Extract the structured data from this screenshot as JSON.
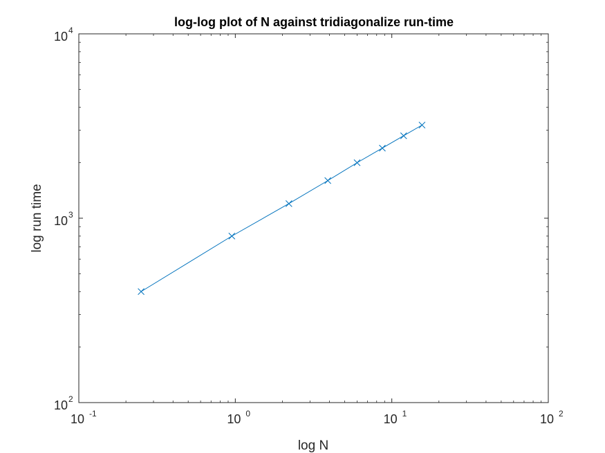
{
  "chart_data": {
    "type": "line",
    "title": "log-log plot of N against tridiagonalize run-time",
    "xlabel": "log N",
    "ylabel": "log run time",
    "xscale": "log",
    "yscale": "log",
    "xlim": [
      0.1,
      100
    ],
    "ylim": [
      100,
      10000
    ],
    "x_ticks": [
      {
        "base": "10",
        "exp": "-1",
        "value": 0.1
      },
      {
        "base": "10",
        "exp": "0",
        "value": 1
      },
      {
        "base": "10",
        "exp": "1",
        "value": 10
      },
      {
        "base": "10",
        "exp": "2",
        "value": 100
      }
    ],
    "y_ticks": [
      {
        "base": "10",
        "exp": "2",
        "value": 100
      },
      {
        "base": "10",
        "exp": "3",
        "value": 1000
      },
      {
        "base": "10",
        "exp": "4",
        "value": 10000
      }
    ],
    "grid": false,
    "series": [
      {
        "color": "#0072BD",
        "marker": "x",
        "x": [
          0.25,
          0.95,
          2.2,
          3.9,
          6.0,
          8.7,
          11.9,
          15.6
        ],
        "y": [
          400,
          800,
          1200,
          1600,
          2000,
          2400,
          2800,
          3200
        ]
      }
    ]
  }
}
